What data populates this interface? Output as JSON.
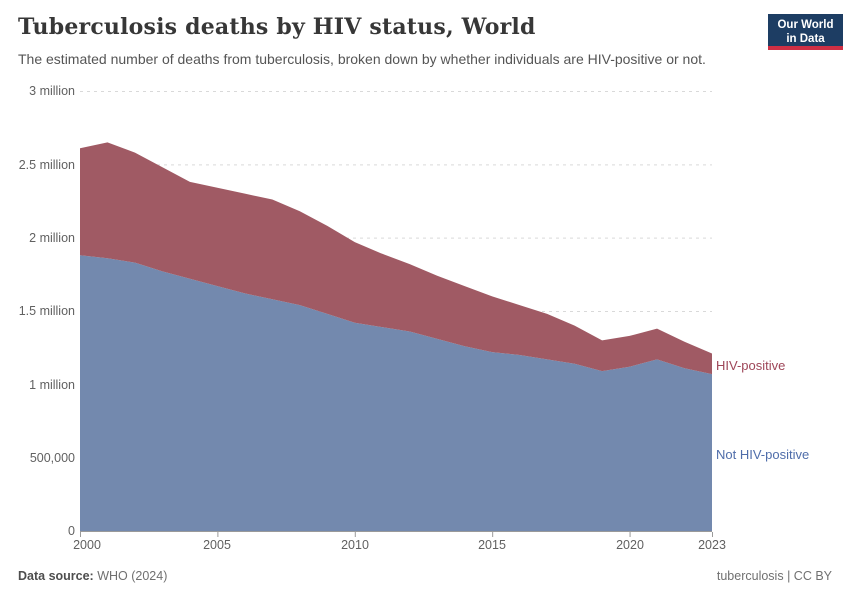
{
  "header": {
    "title": "Tuberculosis deaths by HIV status, World",
    "subtitle": "The estimated number of deaths from tuberculosis, broken down by whether individuals are HIV-positive or not."
  },
  "logo": {
    "line1": "Our World",
    "line2": "in Data",
    "bg_color": "#1d3d63",
    "bar_color": "#cf2f44"
  },
  "footer": {
    "data_source_label": "Data source:",
    "data_source_value": "WHO (2024)",
    "right_label": "tuberculosis",
    "right_sep": "|",
    "right_license": "CC BY"
  },
  "chart_data": {
    "type": "area",
    "stacked": true,
    "title": "Tuberculosis deaths by HIV status, World",
    "xlabel": "",
    "ylabel": "",
    "ylim": [
      0,
      3000000
    ],
    "grid": "horizontal-dashed",
    "legend_position": "right",
    "x": [
      2000,
      2001,
      2002,
      2003,
      2004,
      2005,
      2006,
      2007,
      2008,
      2009,
      2010,
      2011,
      2012,
      2013,
      2014,
      2015,
      2016,
      2017,
      2018,
      2019,
      2020,
      2021,
      2022,
      2023
    ],
    "series": [
      {
        "name": "Not HIV-positive",
        "color": "#7389ae",
        "label_color": "#4f6daa",
        "values": [
          1880000,
          1860000,
          1830000,
          1770000,
          1720000,
          1670000,
          1620000,
          1580000,
          1540000,
          1480000,
          1420000,
          1390000,
          1360000,
          1310000,
          1260000,
          1220000,
          1200000,
          1170000,
          1140000,
          1090000,
          1120000,
          1170000,
          1110000,
          1070000
        ]
      },
      {
        "name": "HIV-positive",
        "color": "#a05a64",
        "label_color": "#9e4658",
        "values": [
          730000,
          790000,
          750000,
          710000,
          660000,
          670000,
          680000,
          680000,
          640000,
          600000,
          550000,
          500000,
          460000,
          430000,
          410000,
          380000,
          340000,
          310000,
          260000,
          210000,
          210000,
          210000,
          180000,
          140000
        ]
      }
    ],
    "yticks": [
      {
        "value": 0,
        "label": "0"
      },
      {
        "value": 500000,
        "label": "500,000"
      },
      {
        "value": 1000000,
        "label": "1 million"
      },
      {
        "value": 1500000,
        "label": "1.5 million"
      },
      {
        "value": 2000000,
        "label": "2 million"
      },
      {
        "value": 2500000,
        "label": "2.5 million"
      },
      {
        "value": 3000000,
        "label": "3 million"
      }
    ],
    "xticks": [
      2000,
      2005,
      2010,
      2015,
      2020,
      2023
    ]
  }
}
